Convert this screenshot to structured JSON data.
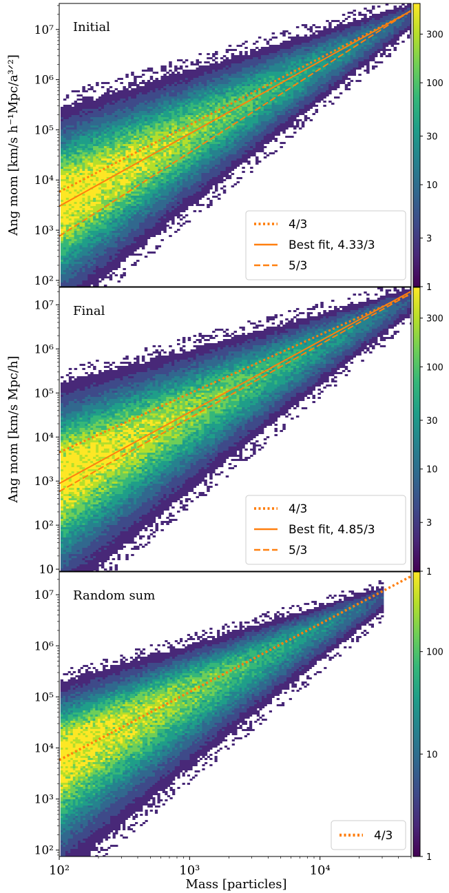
{
  "colors": {
    "line": "#ff7f0e",
    "axis": "#000000",
    "colormap": [
      "#440154",
      "#482878",
      "#3e4a89",
      "#31688e",
      "#26828e",
      "#1f9e89",
      "#35b779",
      "#6ece58",
      "#b5de2b",
      "#fde725"
    ]
  },
  "chart_data": [
    {
      "type": "heatmap",
      "panel": "top",
      "title": "Initial",
      "xlabel": "",
      "ylabel": "Ang mom [km/s h⁻¹Mpc/a³ᐟ²]",
      "xscale": "log",
      "yscale": "log",
      "xlim": [
        100,
        50000
      ],
      "ylim": [
        75,
        33000000
      ],
      "yticks": [
        {
          "value": 100,
          "label": "10²"
        },
        {
          "value": 1000,
          "label": "10³"
        },
        {
          "value": 10000,
          "label": "10⁴"
        },
        {
          "value": 100000,
          "label": "10⁵"
        },
        {
          "value": 1000000,
          "label": "10⁶"
        },
        {
          "value": 10000000,
          "label": "10⁷"
        }
      ],
      "density": {
        "center_at_100": 4000,
        "spread_low_at_100": 150,
        "spread_high_at_100": 60000,
        "slope": 1.44,
        "end_mass": 50000,
        "end_value": 21000000
      },
      "colorbar": {
        "scale": "log",
        "range": [
          1,
          600
        ],
        "ticks": [
          "1",
          "3",
          "10",
          "30",
          "100",
          "300"
        ]
      },
      "lines": [
        {
          "name": "4/3",
          "style": "dotted",
          "slope": 1.3333,
          "y_at_100": 5800,
          "width": 3
        },
        {
          "name": "Best fit, 4.33/3",
          "style": "solid",
          "slope": 1.4433,
          "y_at_100": 3000,
          "width": 2
        },
        {
          "name": "5/3",
          "style": "dashed",
          "slope": 1.6667,
          "y_at_100": 760,
          "width": 2
        }
      ],
      "legend": "lower-right"
    },
    {
      "type": "heatmap",
      "panel": "middle",
      "title": "Final",
      "xlabel": "",
      "ylabel": "Ang mom [km/s Mpc/h]",
      "xscale": "log",
      "yscale": "log",
      "xlim": [
        100,
        50000
      ],
      "ylim": [
        9,
        25000000
      ],
      "yticks": [
        {
          "value": 10,
          "label": "10"
        },
        {
          "value": 100,
          "label": "10²"
        },
        {
          "value": 1000,
          "label": "10³"
        },
        {
          "value": 10000,
          "label": "10⁴"
        },
        {
          "value": 100000,
          "label": "10⁵"
        },
        {
          "value": 1000000,
          "label": "10⁶"
        },
        {
          "value": 10000000,
          "label": "10⁷"
        }
      ],
      "density": {
        "center_at_100": 1500,
        "spread_low_at_100": 25,
        "spread_high_at_100": 30000,
        "slope": 1.6,
        "end_mass": 50000,
        "end_value": 15000000
      },
      "colorbar": {
        "scale": "log",
        "range": [
          1,
          600
        ],
        "ticks": [
          "1",
          "3",
          "10",
          "30",
          "100",
          "300"
        ]
      },
      "lines": [
        {
          "name": "4/3",
          "style": "dotted",
          "slope": 1.3333,
          "y_at_100": 4500,
          "width": 3
        },
        {
          "name": "Best fit, 4.85/3",
          "style": "solid",
          "slope": 1.6167,
          "y_at_100": 880,
          "width": 2
        },
        {
          "name": "5/3",
          "style": "dashed",
          "slope": 1.6667,
          "y_at_100": 580,
          "width": 2
        }
      ],
      "legend": "lower-right"
    },
    {
      "type": "heatmap",
      "panel": "bottom",
      "title": "Random sum",
      "xlabel": "Mass [particles]",
      "ylabel": "",
      "xscale": "log",
      "yscale": "log",
      "xlim": [
        100,
        50000
      ],
      "ylim": [
        75,
        28000000
      ],
      "xticks": [
        {
          "value": 100,
          "label": "10²"
        },
        {
          "value": 1000,
          "label": "10³"
        },
        {
          "value": 10000,
          "label": "10⁴"
        }
      ],
      "yticks": [
        {
          "value": 100,
          "label": "10²"
        },
        {
          "value": 1000,
          "label": "10³"
        },
        {
          "value": 10000,
          "label": "10⁴"
        },
        {
          "value": 100000,
          "label": "10⁵"
        },
        {
          "value": 1000000,
          "label": "10⁶"
        },
        {
          "value": 10000000,
          "label": "10⁷"
        }
      ],
      "density": {
        "center_at_100": 8000,
        "spread_low_at_100": 250,
        "spread_high_at_100": 60000,
        "slope": 1.33,
        "end_mass": 30000,
        "end_value": 10000000
      },
      "colorbar": {
        "scale": "log",
        "range": [
          1,
          600
        ],
        "ticks": [
          "1",
          "10",
          "100"
        ]
      },
      "lines": [
        {
          "name": "4/3",
          "style": "dotted",
          "slope": 1.3333,
          "y_at_100": 5800,
          "width": 3.5
        }
      ],
      "legend": "lower-right"
    }
  ]
}
